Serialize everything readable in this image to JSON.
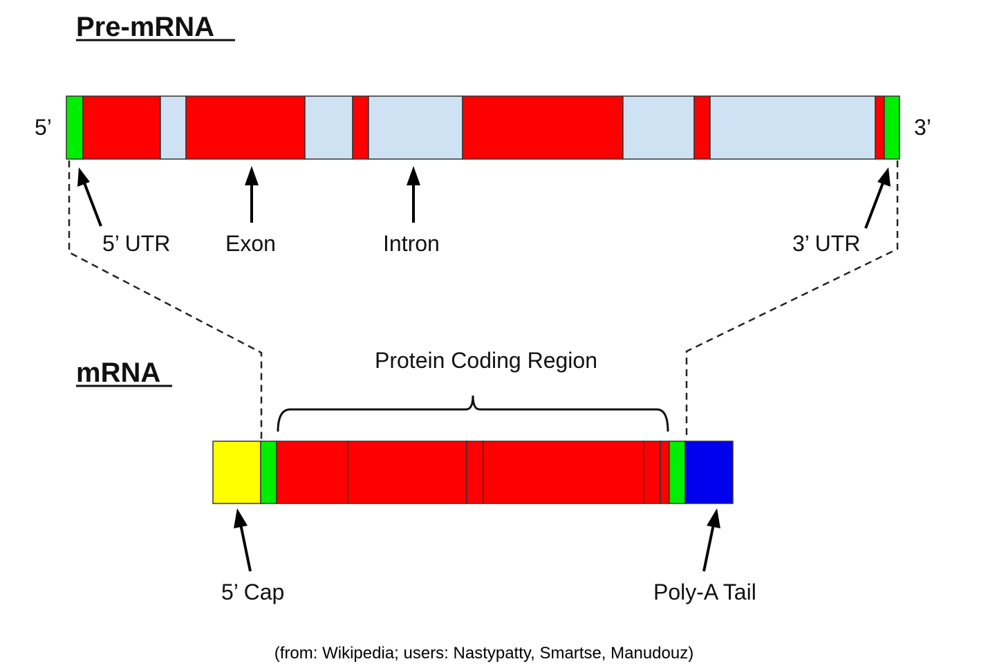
{
  "pre_mrna": {
    "title": "Pre-mRNA",
    "end5": "5’",
    "end3": "3’",
    "labels": {
      "utr5": "5’ UTR",
      "exon": "Exon",
      "intron": "Intron",
      "utr3": "3’ UTR"
    }
  },
  "mrna": {
    "title": "mRNA",
    "brace_label": "Protein Coding Region",
    "labels": {
      "cap": "5’ Cap",
      "tail": "Poly-A Tail"
    }
  },
  "credit": "(from: Wikipedia; users: Nastypatty, Smartse, Manudouz)",
  "colors": {
    "utr": "#00ee00",
    "exon": "#ff0000",
    "intron": "#cfe2f3",
    "cap": "#ffff00",
    "tail": "#0000ee"
  }
}
